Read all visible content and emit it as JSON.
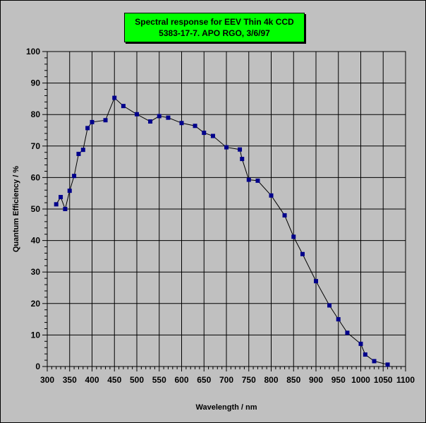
{
  "chart_data": {
    "type": "line",
    "title": "Spectral response for EEV Thin 4k CCD",
    "subtitle": "5383-17-7. APO RGO, 3/6/97",
    "xlabel": "Wavelength / nm",
    "ylabel": "Quantum Efficiency / %",
    "xlim": [
      300,
      1100
    ],
    "ylim": [
      0,
      100
    ],
    "xticks": [
      300,
      350,
      400,
      450,
      500,
      550,
      600,
      650,
      700,
      750,
      800,
      850,
      900,
      950,
      1000,
      1050,
      1100
    ],
    "yticks": [
      0,
      10,
      20,
      30,
      40,
      50,
      60,
      70,
      80,
      90,
      100
    ],
    "grid": true,
    "colors": {
      "plot_background": "#c0c0c0",
      "title_background": "#00ff00",
      "marker": "#00008b",
      "line": "#000000"
    },
    "series": [
      {
        "x": [
          320,
          330,
          340,
          350,
          360,
          370,
          380,
          390,
          400,
          430,
          450,
          470,
          500,
          530,
          550,
          570,
          600,
          630,
          650,
          670,
          700,
          730,
          735,
          750,
          770,
          800,
          830,
          850,
          870,
          900,
          930,
          950,
          970,
          1000,
          1010,
          1030,
          1060
        ],
        "y": [
          51.5,
          53.8,
          50.0,
          55.8,
          60.5,
          67.5,
          68.8,
          75.7,
          77.6,
          78.2,
          85.3,
          82.7,
          80.1,
          77.8,
          79.5,
          79.0,
          77.3,
          76.4,
          74.2,
          73.2,
          69.6,
          68.9,
          65.9,
          59.3,
          59.0,
          54.3,
          48.0,
          41.2,
          35.7,
          27.1,
          19.4,
          15.0,
          10.7,
          7.2,
          3.8,
          1.7,
          0.6
        ]
      }
    ]
  }
}
